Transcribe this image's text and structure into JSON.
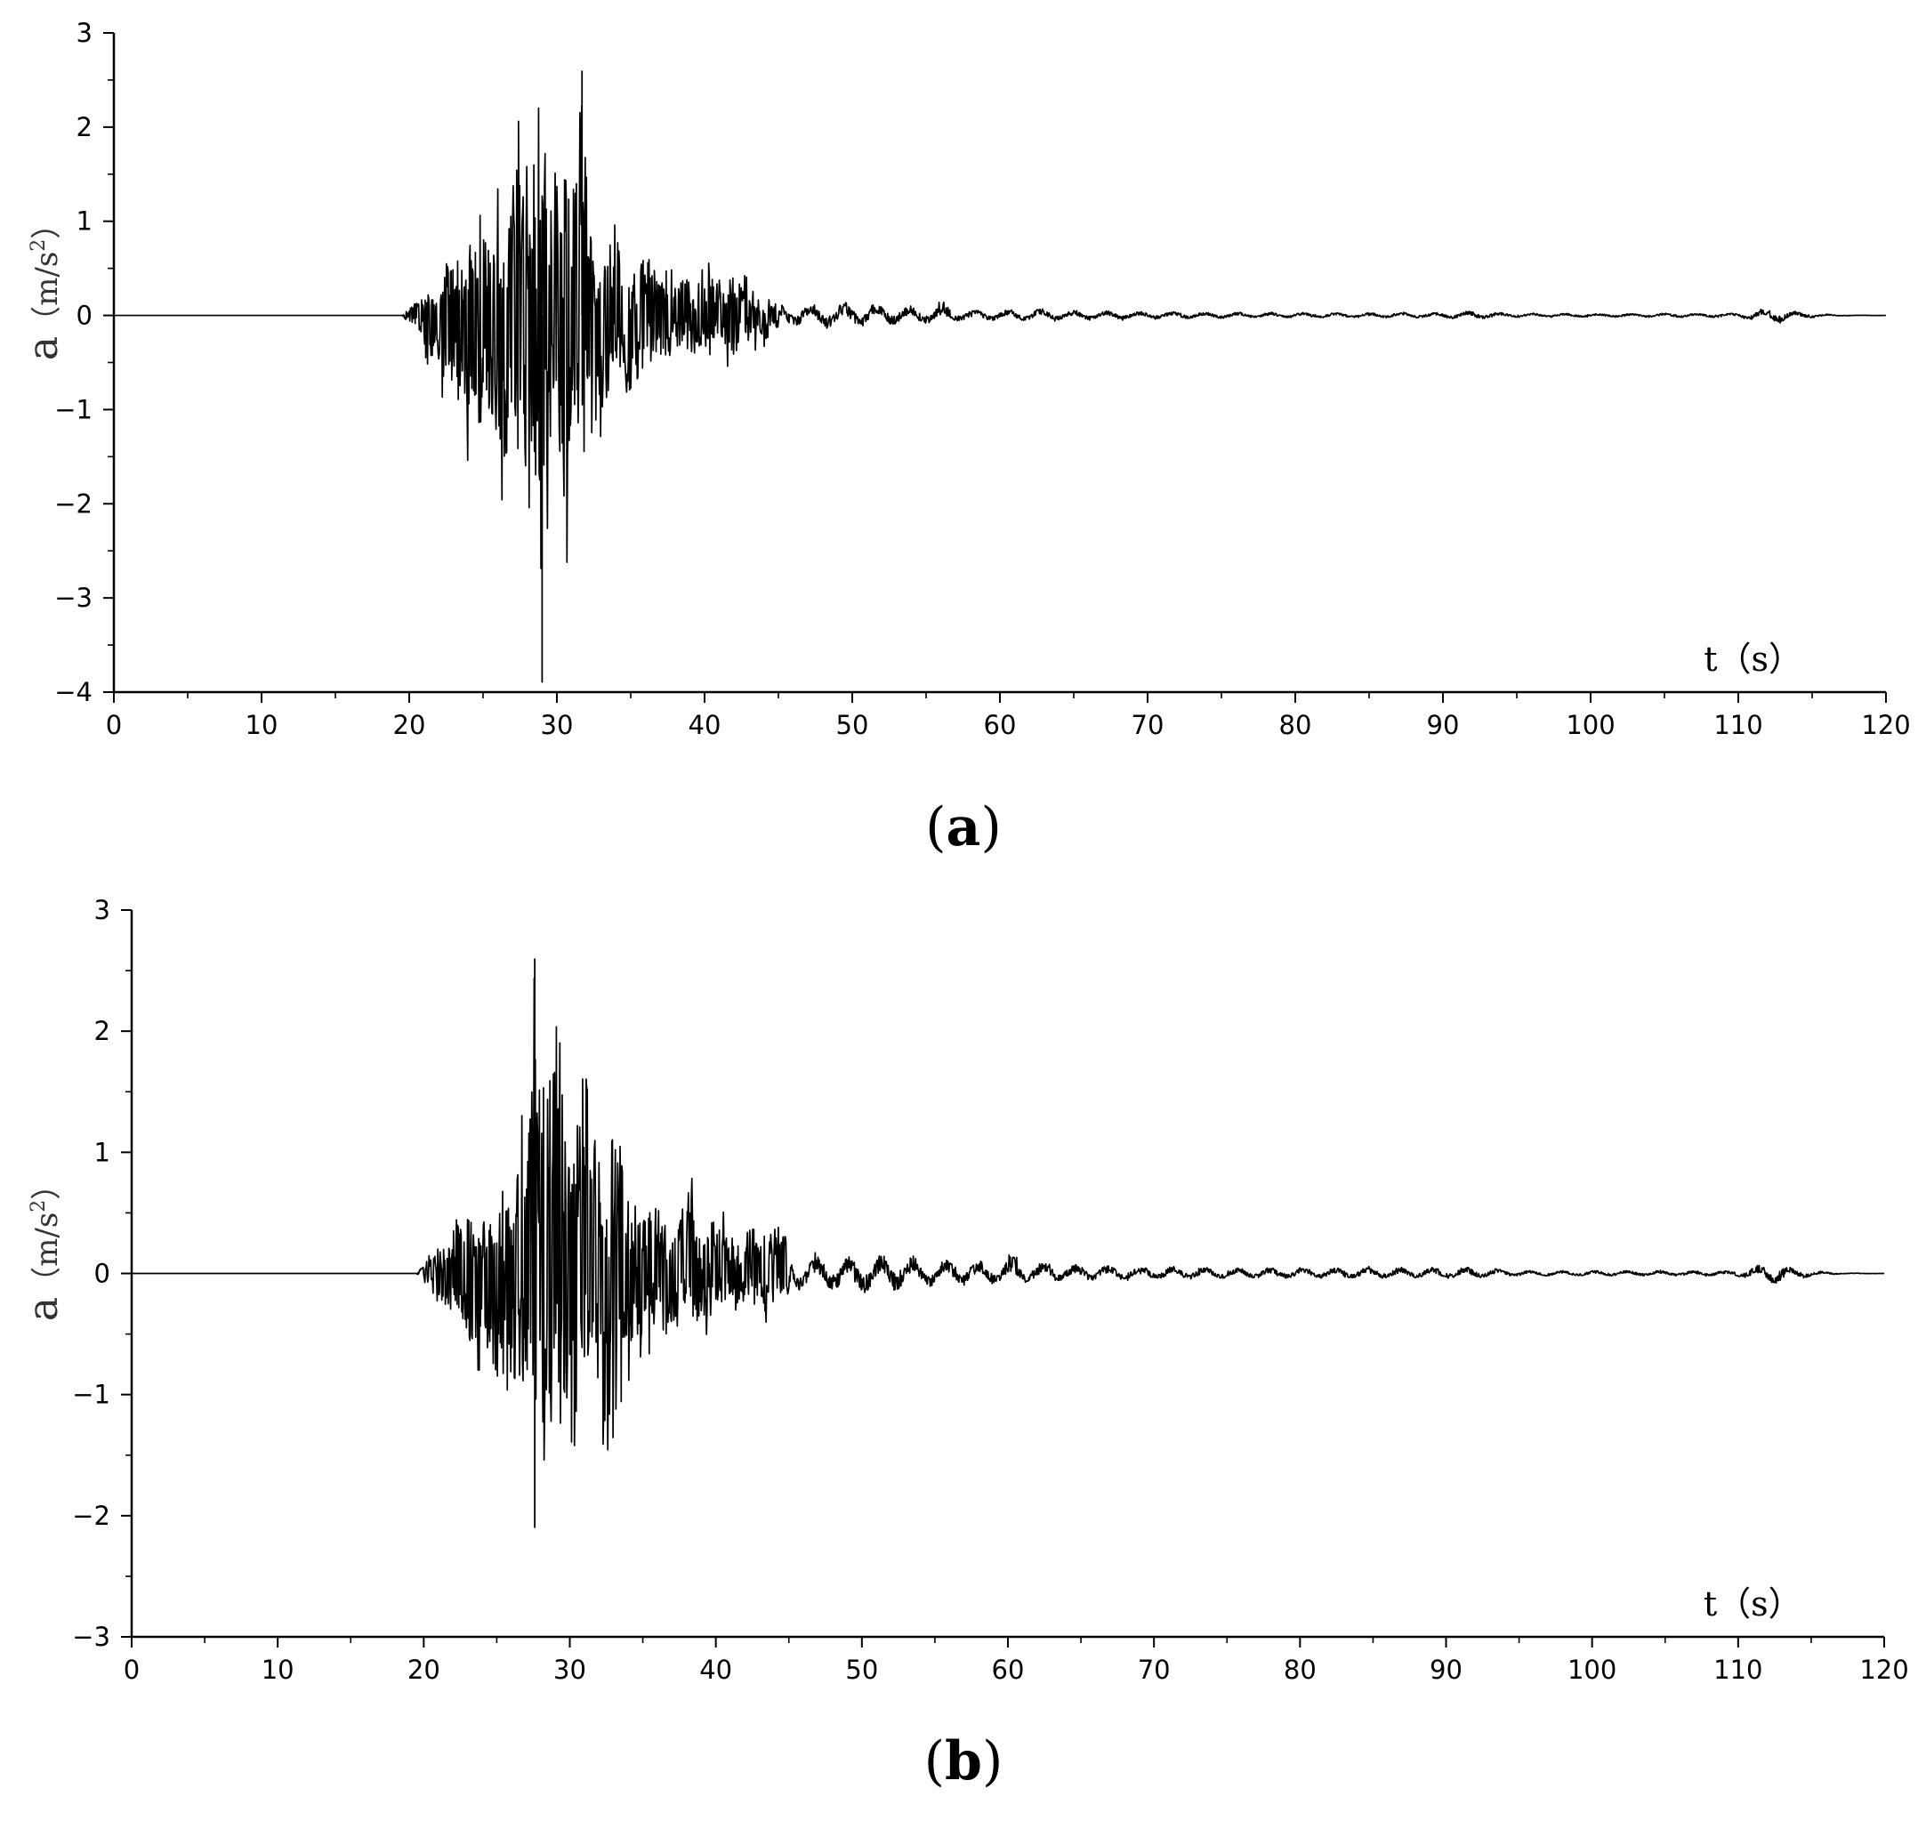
{
  "chart_data": [
    {
      "id": "a",
      "type": "line",
      "caption_letter": "a",
      "xlabel": "t（s）",
      "ylabel_main": "a",
      "ylabel_unit": "（m/s",
      "ylabel_sup": "2",
      "ylabel_close": "）",
      "xlim": [
        0,
        120
      ],
      "ylim": [
        -4,
        3
      ],
      "xticks": [
        0,
        10,
        20,
        30,
        40,
        50,
        60,
        70,
        80,
        90,
        100,
        110,
        120
      ],
      "yticks": [
        -4,
        -3,
        -2,
        -1,
        0,
        1,
        2,
        3
      ],
      "grid": false,
      "series": [
        {
          "x": [
            0,
            19.5,
            20,
            21,
            22,
            23,
            24,
            25,
            25.5,
            26,
            27,
            28,
            28.5,
            29,
            29.5,
            30,
            31,
            31.7,
            32,
            33,
            34,
            35,
            36,
            37,
            38,
            40,
            42,
            44,
            46,
            48,
            50,
            52,
            54,
            55.8,
            58,
            62,
            66,
            70,
            75,
            80,
            85,
            90,
            92,
            95,
            100,
            105,
            110,
            112.8,
            113.5,
            115,
            117,
            120
          ],
          "y_upper": [
            0,
            0,
            0.1,
            0.3,
            0.6,
            0.9,
            1.1,
            1.3,
            1.2,
            1.5,
            1.6,
            2.3,
            2.5,
            2.1,
            2.0,
            2.3,
            2.2,
            2.6,
            1.8,
            1.3,
            1.1,
            1.0,
            0.9,
            0.8,
            0.6,
            0.5,
            0.6,
            0.3,
            0.25,
            0.2,
            0.3,
            0.25,
            0.2,
            0.32,
            0.12,
            0.15,
            0.1,
            0.08,
            0.07,
            0.06,
            0.06,
            0.06,
            0.1,
            0.05,
            0.04,
            0.04,
            0.05,
            0.2,
            0.1,
            0.05,
            0.01,
            0
          ],
          "y_lower": [
            0,
            0,
            -0.1,
            -0.4,
            -0.8,
            -1.1,
            -1.4,
            -1.8,
            -1.6,
            -1.7,
            -2.0,
            -2.5,
            -2.2,
            -3.9,
            -2.0,
            -1.9,
            -2.6,
            -2.4,
            -2.0,
            -1.5,
            -1.2,
            -0.9,
            -0.8,
            -0.6,
            -0.5,
            -0.45,
            -0.5,
            -0.3,
            -0.25,
            -0.3,
            -0.25,
            -0.2,
            -0.2,
            -0.15,
            -0.12,
            -0.12,
            -0.1,
            -0.08,
            -0.06,
            -0.05,
            -0.05,
            -0.06,
            -0.08,
            -0.04,
            -0.04,
            -0.04,
            -0.05,
            -0.18,
            -0.1,
            -0.05,
            -0.01,
            0
          ]
        }
      ]
    },
    {
      "id": "b",
      "type": "line",
      "caption_letter": "b",
      "xlabel": "t（s）",
      "ylabel_main": "a",
      "ylabel_unit": "（m/s",
      "ylabel_sup": "2",
      "ylabel_close": "）",
      "xlim": [
        0,
        120
      ],
      "ylim": [
        -3,
        3
      ],
      "xticks": [
        0,
        10,
        20,
        30,
        40,
        50,
        60,
        70,
        80,
        90,
        100,
        110,
        120
      ],
      "yticks": [
        -3,
        -2,
        -1,
        0,
        1,
        2,
        3
      ],
      "grid": false,
      "series": [
        {
          "x": [
            0,
            19.5,
            20,
            21,
            22,
            23,
            24,
            25,
            26,
            26.5,
            27,
            27.6,
            28,
            29,
            29.5,
            30,
            31,
            32,
            33,
            33.5,
            34,
            35,
            36,
            37,
            38,
            40,
            42,
            44,
            46,
            48,
            50,
            52.5,
            55,
            58,
            60.2,
            62,
            65,
            70,
            75,
            80,
            85,
            90,
            92,
            95,
            100,
            105,
            110,
            112.8,
            113.5,
            115,
            117,
            120
          ],
          "y_upper": [
            0,
            0,
            0.1,
            0.3,
            0.5,
            0.6,
            0.7,
            0.6,
            0.9,
            1.4,
            1.7,
            2.6,
            2.3,
            2.4,
            2.2,
            2.1,
            2.4,
            1.6,
            1.5,
            1.4,
            0.9,
            0.8,
            0.8,
            0.6,
            0.8,
            0.5,
            0.4,
            0.5,
            0.3,
            0.3,
            0.25,
            0.35,
            0.25,
            0.2,
            0.35,
            0.2,
            0.15,
            0.12,
            0.1,
            0.1,
            0.1,
            0.1,
            0.12,
            0.05,
            0.05,
            0.05,
            0.05,
            0.22,
            0.1,
            0.05,
            0.01,
            0
          ],
          "y_lower": [
            0,
            0,
            -0.1,
            -0.3,
            -0.5,
            -0.8,
            -1.0,
            -1.2,
            -1.4,
            -1.2,
            -1.5,
            -2.1,
            -1.9,
            -1.7,
            -1.9,
            -1.6,
            -1.8,
            -1.6,
            -1.8,
            -1.2,
            -0.9,
            -0.8,
            -0.6,
            -0.6,
            -0.5,
            -0.45,
            -0.4,
            -0.35,
            -0.3,
            -0.3,
            -0.35,
            -0.3,
            -0.2,
            -0.2,
            -0.15,
            -0.15,
            -0.12,
            -0.1,
            -0.08,
            -0.08,
            -0.08,
            -0.08,
            -0.08,
            -0.04,
            -0.04,
            -0.04,
            -0.05,
            -0.2,
            -0.1,
            -0.05,
            -0.01,
            0
          ]
        }
      ]
    }
  ]
}
